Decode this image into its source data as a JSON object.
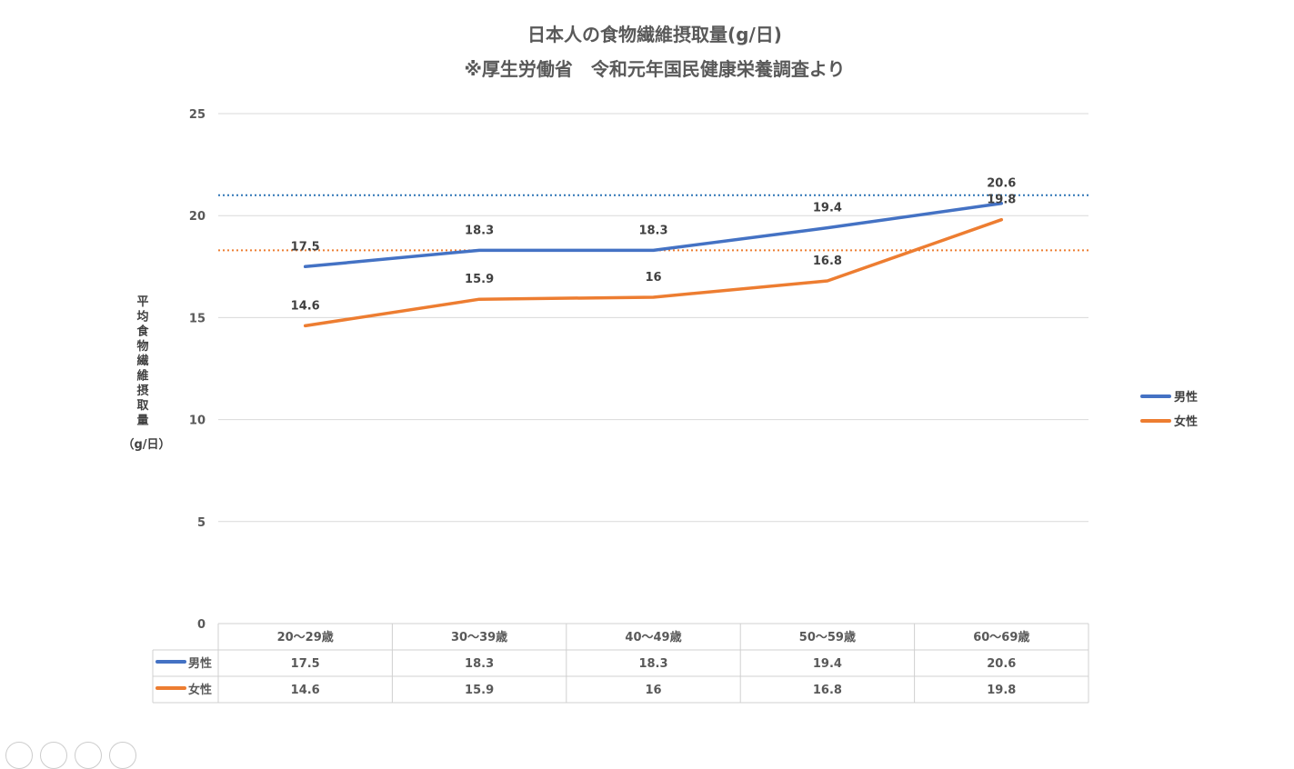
{
  "chart_data": {
    "type": "line",
    "title": "日本人の食物繊維摂取量(g/日)",
    "subtitle": "※厚生労働省　令和元年国民健康栄養調査より",
    "ylabel": "平均食物繊維摂取量",
    "ylabel_unit": "（g/日）",
    "categories": [
      "20〜29歳",
      "30〜39歳",
      "40〜49歳",
      "50〜59歳",
      "60〜69歳"
    ],
    "series": [
      {
        "name": "男性",
        "values": [
          17.5,
          18.3,
          18.3,
          19.4,
          20.6
        ],
        "color": "#4472c4"
      },
      {
        "name": "女性",
        "values": [
          14.6,
          15.9,
          16,
          16.8,
          19.8
        ],
        "color": "#ed7d31"
      }
    ],
    "data_labels": [
      [
        "17.5",
        "18.3",
        "18.3",
        "19.4",
        "20.6"
      ],
      [
        "14.6",
        "15.9",
        "16",
        "16.8",
        "19.8"
      ]
    ],
    "reference_lines": [
      {
        "value": 21,
        "color": "#2e75b6",
        "style": "dotted"
      },
      {
        "value": 18.3,
        "color": "#ed7d31",
        "style": "dotted"
      }
    ],
    "ylim": [
      0,
      25
    ],
    "yticks": [
      "0",
      "5",
      "10",
      "15",
      "20",
      "25"
    ],
    "grid": true,
    "legend_position": "right",
    "data_table": true
  }
}
